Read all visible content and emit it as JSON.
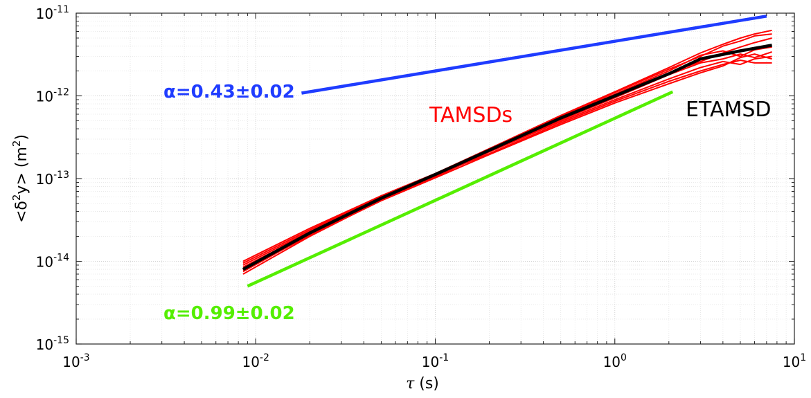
{
  "chart_data": {
    "type": "line",
    "x_scale": "log",
    "y_scale": "log",
    "xlim": [
      0.001,
      10
    ],
    "ylim": [
      1e-15,
      1e-11
    ],
    "grid": true,
    "x_ticks": [
      {
        "base": "10",
        "exp": "-3"
      },
      {
        "base": "10",
        "exp": "-2"
      },
      {
        "base": "10",
        "exp": "-1"
      },
      {
        "base": "10",
        "exp": "0"
      },
      {
        "base": "10",
        "exp": "1"
      }
    ],
    "y_ticks": [
      {
        "base": "10",
        "exp": "-15"
      },
      {
        "base": "10",
        "exp": "-14"
      },
      {
        "base": "10",
        "exp": "-13"
      },
      {
        "base": "10",
        "exp": "-12"
      },
      {
        "base": "10",
        "exp": "-11"
      }
    ],
    "xlabel": {
      "symbol": "τ",
      "unit": " (s)"
    },
    "ylabel": {
      "open": "<δ",
      "sup1": "2",
      "mid": "y> (m",
      "sup2": "2",
      "close": ")"
    },
    "reference_lines": [
      {
        "label": "α=0.43±0.02",
        "color": "#1f3cff",
        "x": [
          0.018,
          7.0
        ],
        "y": [
          1.08e-12,
          9.2e-12
        ]
      },
      {
        "label": "α=0.99±0.02",
        "color": "#55ee00",
        "x": [
          0.009,
          2.1
        ],
        "y": [
          5e-15,
          1.12e-12
        ]
      }
    ],
    "series_labels": [
      {
        "text": "TAMSDs",
        "color": "#ff0000"
      },
      {
        "text": "ETAMSD",
        "color": "#000000"
      }
    ],
    "etamsd": {
      "color": "#000000",
      "x": [
        0.0085,
        0.02,
        0.05,
        0.1,
        0.2,
        0.5,
        1.0,
        2.0,
        3.0,
        5.0,
        7.5
      ],
      "y": [
        8e-15,
        2.2e-14,
        5.8e-14,
        1.12e-13,
        2.2e-13,
        5.4e-13,
        1e-12,
        1.85e-12,
        2.8e-12,
        3.5e-12,
        4.1e-12
      ]
    },
    "tamsds": {
      "color": "#ff0000",
      "x": [
        0.0085,
        0.02,
        0.05,
        0.1,
        0.2,
        0.5,
        1.0,
        2.0,
        3.0,
        4.0,
        5.0,
        6.0,
        7.5
      ],
      "series": [
        [
          1e-14,
          2.5e-14,
          6.2e-14,
          1.15e-13,
          2.3e-13,
          5.6e-13,
          1.1e-12,
          2.1e-12,
          3e-12,
          4e-12,
          4.6e-12,
          5.3e-12,
          5.6e-12
        ],
        [
          9e-15,
          2.3e-14,
          6e-14,
          1.13e-13,
          2.25e-13,
          5.5e-13,
          1.05e-12,
          2e-12,
          3.1e-12,
          3.5e-12,
          3e-12,
          3.6e-12,
          3.9e-12
        ],
        [
          8.5e-15,
          2.2e-14,
          5.8e-14,
          1.1e-13,
          2.2e-13,
          5.3e-13,
          1e-12,
          1.9e-12,
          2.6e-12,
          3.3e-12,
          3.9e-12,
          4.4e-12,
          5e-12
        ],
        [
          7.5e-15,
          2.1e-14,
          5.6e-14,
          1.08e-13,
          2.15e-13,
          5.1e-13,
          9.5e-13,
          1.8e-12,
          2.5e-12,
          2.8e-12,
          3.2e-12,
          2.9e-12,
          3.4e-12
        ],
        [
          7e-15,
          2e-14,
          5.5e-14,
          1.05e-13,
          2.1e-13,
          4.9e-13,
          9e-13,
          1.6e-12,
          2.2e-12,
          2.6e-12,
          2.4e-12,
          2.8e-12,
          3e-12
        ],
        [
          8e-15,
          2.15e-14,
          5.7e-14,
          1.1e-13,
          2e-13,
          4.7e-13,
          8.6e-13,
          1.5e-12,
          2e-12,
          2.4e-12,
          2.7e-12,
          2.5e-12,
          2.5e-12
        ],
        [
          9.5e-15,
          2.4e-14,
          6.1e-14,
          1.14e-13,
          2.3e-13,
          5.8e-13,
          1.12e-12,
          2.2e-12,
          3.3e-12,
          4.2e-12,
          5e-12,
          5.6e-12,
          6.2e-12
        ],
        [
          7.8e-15,
          2.05e-14,
          5.4e-14,
          1.02e-13,
          1.95e-13,
          4.5e-13,
          8.2e-13,
          1.4e-12,
          1.9e-12,
          2.3e-12,
          2.9e-12,
          3.2e-12,
          2.8e-12
        ]
      ]
    }
  }
}
